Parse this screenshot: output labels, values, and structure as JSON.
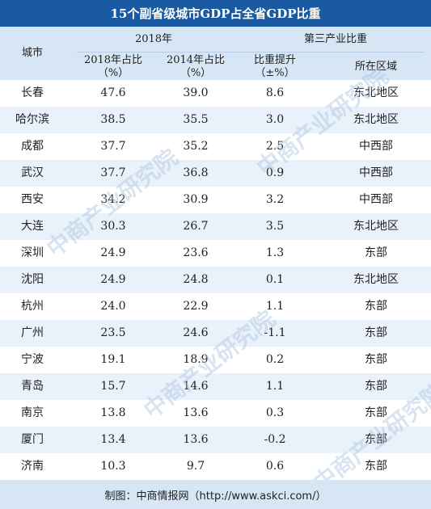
{
  "title": "15个副省级城市GDP占全省GDP比重",
  "header": {
    "city": "城市",
    "group_2018": "2018年",
    "tertiary": "第三产业比重",
    "col_2018_share": "2018年占比",
    "col_2018_unit": "（%）",
    "col_2014_share": "2014年占比",
    "col_2014_unit": "（%）",
    "col_change": "比重提升",
    "col_change_unit": "（±%）",
    "col_region": "所在区域"
  },
  "rows": [
    {
      "city": "长春",
      "share2018": "47.6",
      "share2014": "39.0",
      "change": "8.6",
      "region": "东北地区"
    },
    {
      "city": "哈尔滨",
      "share2018": "38.5",
      "share2014": "35.5",
      "change": "3.0",
      "region": "东北地区"
    },
    {
      "city": "成都",
      "share2018": "37.7",
      "share2014": "35.2",
      "change": "2.5",
      "region": "中西部"
    },
    {
      "city": "武汉",
      "share2018": "37.7",
      "share2014": "36.8",
      "change": "0.9",
      "region": "中西部"
    },
    {
      "city": "西安",
      "share2018": "34.2",
      "share2014": "30.9",
      "change": "3.2",
      "region": "中西部"
    },
    {
      "city": "大连",
      "share2018": "30.3",
      "share2014": "26.7",
      "change": "3.5",
      "region": "东北地区"
    },
    {
      "city": "深圳",
      "share2018": "24.9",
      "share2014": "23.6",
      "change": "1.3",
      "region": "东部"
    },
    {
      "city": "沈阳",
      "share2018": "24.9",
      "share2014": "24.8",
      "change": "0.1",
      "region": "东北地区"
    },
    {
      "city": "杭州",
      "share2018": "24.0",
      "share2014": "22.9",
      "change": "1.1",
      "region": "东部"
    },
    {
      "city": "广州",
      "share2018": "23.5",
      "share2014": "24.6",
      "change": "-1.1",
      "region": "东部"
    },
    {
      "city": "宁波",
      "share2018": "19.1",
      "share2014": "18.9",
      "change": "0.2",
      "region": "东部"
    },
    {
      "city": "青岛",
      "share2018": "15.7",
      "share2014": "14.6",
      "change": "1.1",
      "region": "东部"
    },
    {
      "city": "南京",
      "share2018": "13.8",
      "share2014": "13.6",
      "change": "0.3",
      "region": "东部"
    },
    {
      "city": "厦门",
      "share2018": "13.4",
      "share2014": "13.6",
      "change": "-0.2",
      "region": "东部"
    },
    {
      "city": "济南",
      "share2018": "10.3",
      "share2014": "9.7",
      "change": "0.6",
      "region": "东部"
    }
  ],
  "footer": "制图：中商情报网（http://www.askci.com/）",
  "watermark": "中商产业研究院"
}
